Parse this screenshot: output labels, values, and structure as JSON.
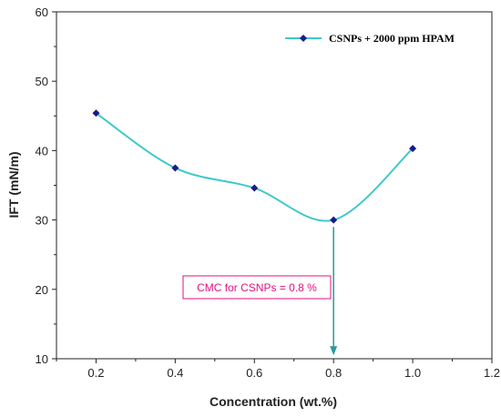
{
  "chart_data": {
    "type": "line",
    "xlabel": "Concentration (wt.%)",
    "ylabel": "IFT (mN/m)",
    "xlim": [
      0.1,
      1.2
    ],
    "ylim": [
      10,
      60
    ],
    "x_ticks": [
      "0.2",
      "0.4",
      "0.6",
      "0.8",
      "1.0",
      "1.2"
    ],
    "y_ticks": [
      "10",
      "20",
      "30",
      "40",
      "50",
      "60"
    ],
    "grid": false,
    "legend_position": "top-right",
    "series": [
      {
        "name": "CSNPs + 2000 ppm HPAM",
        "x": [
          0.2,
          0.4,
          0.6,
          0.8,
          1.0
        ],
        "y": [
          45.4,
          37.5,
          34.6,
          30.0,
          40.3
        ],
        "line_color": "#3fc9c9",
        "marker_color": "#1a1a8c",
        "marker": "diamond",
        "smooth": true
      }
    ],
    "annotation": {
      "text": "CMC for CSNPs = 0.8 %",
      "text_color": "#e0117f",
      "box_border_color": "#e0117f",
      "arrow_color": "#2a9a9a",
      "arrow_x": 0.8,
      "arrow_from_y": 29.0,
      "arrow_to_y": 10.5
    }
  }
}
